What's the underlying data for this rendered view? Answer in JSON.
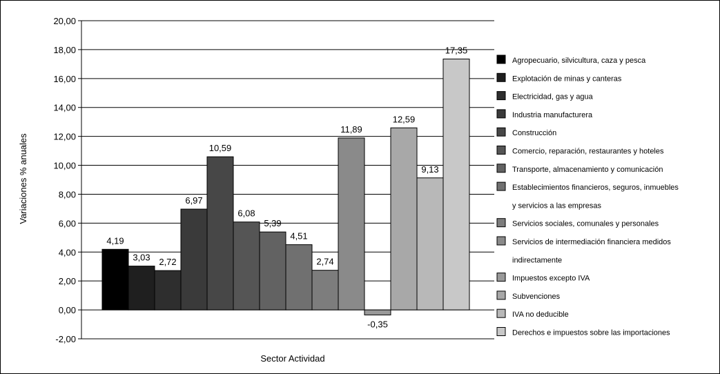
{
  "chart_data": {
    "type": "bar",
    "xlabel": "Sector Actividad",
    "ylabel": "Variaciones % anuales",
    "ylim": [
      -2,
      20
    ],
    "ytick_step": 2,
    "yticks": [
      "-2,00",
      "0,00",
      "2,00",
      "4,00",
      "6,00",
      "8,00",
      "10,00",
      "12,00",
      "14,00",
      "16,00",
      "18,00",
      "20,00"
    ],
    "grid": true,
    "legend_position": "right",
    "series": [
      {
        "name": "Agropecuario, silvicultura, caza y pesca",
        "value": 4.19,
        "label": "4,19",
        "color": "#000000"
      },
      {
        "name": "Explotación de minas y canteras",
        "value": 3.03,
        "label": "3,03",
        "color": "#1f1f1f"
      },
      {
        "name": "Electricidad, gas y agua",
        "value": 2.72,
        "label": "2,72",
        "color": "#2e2e2e"
      },
      {
        "name": "Industria manufacturera",
        "value": 6.97,
        "label": "6,97",
        "color": "#3a3a3a"
      },
      {
        "name": "Construcción",
        "value": 10.59,
        "label": "10,59",
        "color": "#474747"
      },
      {
        "name": "Comercio, reparación, restaurantes y hoteles",
        "value": 6.08,
        "label": "6,08",
        "color": "#555555"
      },
      {
        "name": "Transporte, almacenamiento y comunicación",
        "value": 5.39,
        "label": "5,39",
        "color": "#626262"
      },
      {
        "name": "Establecimientos financieros, seguros, inmuebles",
        "name_line2": "y servicios a las empresas",
        "value": 4.51,
        "label": "4,51",
        "color": "#707070"
      },
      {
        "name": "Servicios sociales, comunales y personales",
        "value": 2.74,
        "label": "2,74",
        "color": "#7d7d7d"
      },
      {
        "name": "Servicios de intermediación financiera medidos",
        "name_line2": "indirectamente",
        "value": 11.89,
        "label": "11,89",
        "color": "#8a8a8a"
      },
      {
        "name": "Impuestos excepto IVA",
        "value": -0.35,
        "label": "-0,35",
        "color": "#999999"
      },
      {
        "name": "Subvenciones",
        "value": 12.59,
        "label": "12,59",
        "color": "#a8a8a8"
      },
      {
        "name": "IVA no deducible",
        "value": 9.13,
        "label": "9,13",
        "color": "#b8b8b8"
      },
      {
        "name": "Derechos e impuestos sobre las importaciones",
        "value": 17.35,
        "label": "17,35",
        "color": "#c8c8c8"
      }
    ]
  }
}
